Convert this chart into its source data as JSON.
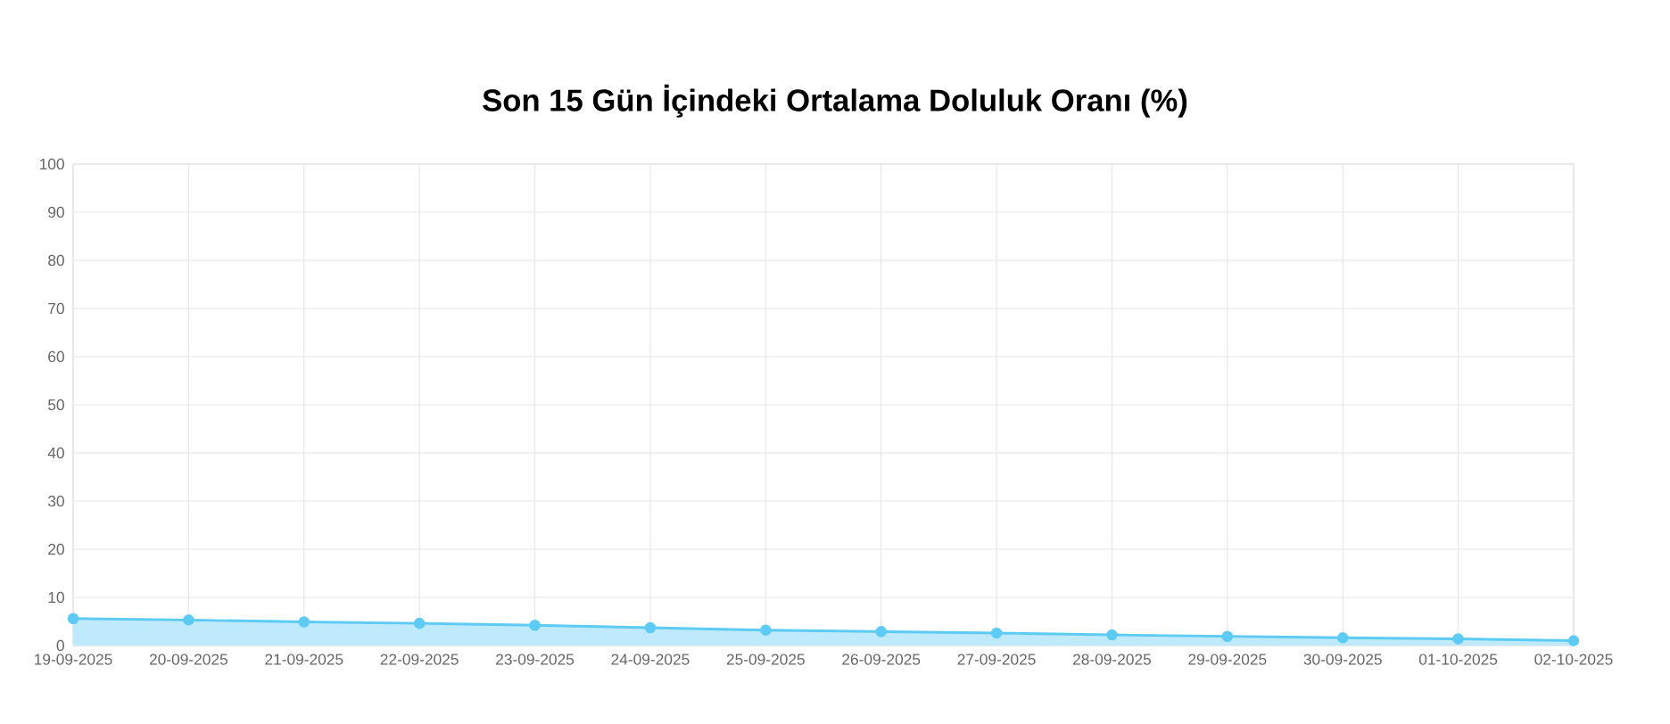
{
  "chart_data": {
    "type": "area",
    "title": "Son 15 Gün İçindeki Ortalama Doluluk Oranı (%)",
    "categories": [
      "19-09-2025",
      "20-09-2025",
      "21-09-2025",
      "22-09-2025",
      "23-09-2025",
      "24-09-2025",
      "25-09-2025",
      "26-09-2025",
      "27-09-2025",
      "28-09-2025",
      "29-09-2025",
      "30-09-2025",
      "01-10-2025",
      "02-10-2025"
    ],
    "values": [
      5.6,
      5.3,
      4.9,
      4.6,
      4.2,
      3.7,
      3.2,
      2.9,
      2.6,
      2.2,
      1.9,
      1.6,
      1.4,
      1.0
    ],
    "color": "#5ecbf5",
    "ylim": [
      0,
      100
    ],
    "yticks": [
      0,
      10,
      20,
      30,
      40,
      50,
      60,
      70,
      80,
      90,
      100
    ],
    "grid": true,
    "marker": "circle"
  }
}
